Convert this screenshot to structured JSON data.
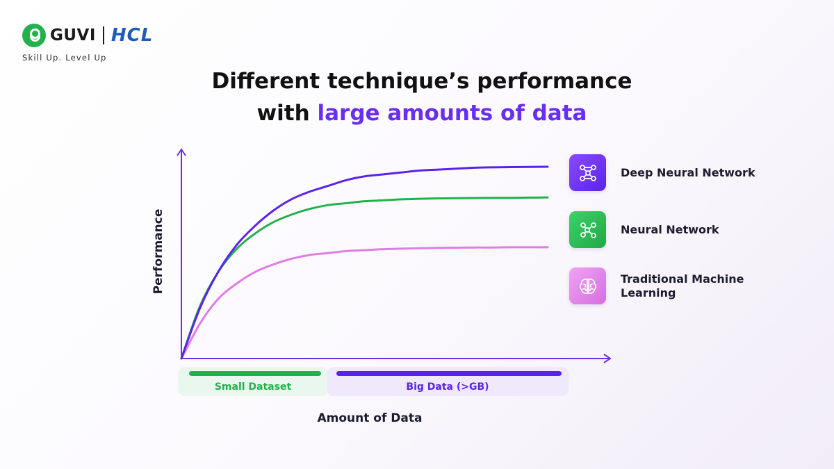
{
  "brand": {
    "name": "GUVI",
    "partner": "HCL",
    "tagline": "Skill Up. Level Up"
  },
  "title": {
    "line1": "Different technique’s performance",
    "line2_plain": "with ",
    "line2_accent": "large amounts of data"
  },
  "colors": {
    "accent": "#6a2ef0",
    "deep": "#5a23e8",
    "neural": "#22b14c",
    "traditional": "#e07ce6"
  },
  "chart_data": {
    "type": "line",
    "title": "Different technique’s performance with large amounts of data",
    "xlabel": "Amount of Data",
    "ylabel": "Performance",
    "grid": false,
    "legend_position": "right",
    "x": [
      0,
      0.05,
      0.1,
      0.15,
      0.2,
      0.25,
      0.3,
      0.35,
      0.4,
      0.45,
      0.5,
      0.55,
      0.6,
      0.65,
      0.7,
      0.75,
      0.8,
      0.85,
      0.9,
      0.95,
      1.0
    ],
    "xlim": [
      0,
      1.18
    ],
    "ylim": [
      0,
      1.0
    ],
    "regions": [
      {
        "label": "Small Dataset",
        "from": 0.0,
        "to": 0.36
      },
      {
        "label": "Big Data (>GB)",
        "from": 0.36,
        "to": 0.96
      }
    ],
    "series": [
      {
        "name": "Deep Neural Network",
        "icon": "network-graph-icon",
        "color": "#5a23e8",
        "values": [
          0,
          0.26,
          0.45,
          0.59,
          0.69,
          0.77,
          0.83,
          0.87,
          0.9,
          0.93,
          0.95,
          0.96,
          0.97,
          0.98,
          0.985,
          0.99,
          0.995,
          0.997,
          0.998,
          0.999,
          1.0
        ]
      },
      {
        "name": "Neural Network",
        "icon": "share-nodes-icon",
        "color": "#22b14c",
        "values": [
          0,
          0.27,
          0.45,
          0.57,
          0.65,
          0.71,
          0.75,
          0.78,
          0.8,
          0.81,
          0.82,
          0.825,
          0.83,
          0.833,
          0.835,
          0.836,
          0.837,
          0.838,
          0.838,
          0.839,
          0.84
        ]
      },
      {
        "name": "Traditional Machine Learning",
        "icon": "brain-icon",
        "color": "#e07ce6",
        "values": [
          0,
          0.18,
          0.31,
          0.39,
          0.45,
          0.49,
          0.52,
          0.54,
          0.55,
          0.56,
          0.565,
          0.57,
          0.573,
          0.575,
          0.577,
          0.578,
          0.579,
          0.579,
          0.58,
          0.58,
          0.58
        ]
      }
    ]
  }
}
